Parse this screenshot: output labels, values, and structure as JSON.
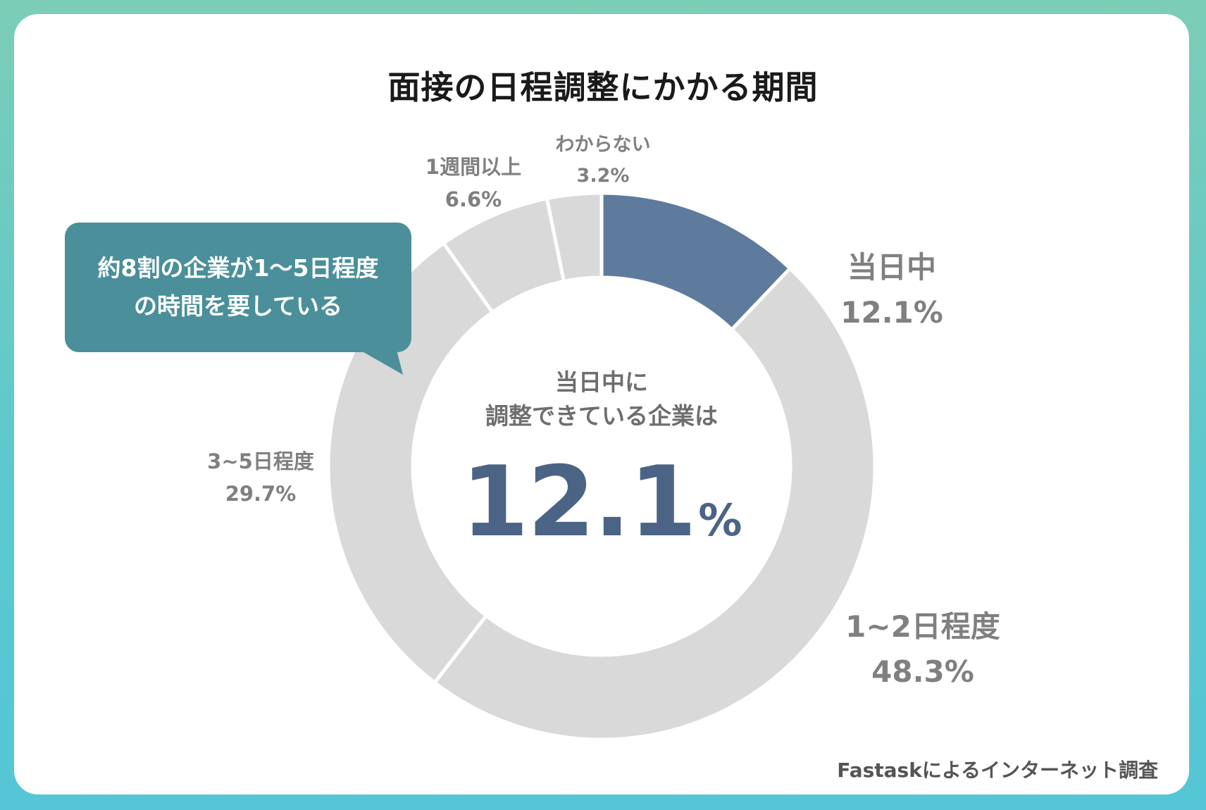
{
  "colors": {
    "highlight": "#5e7b9e",
    "other": "#d9d9d9",
    "callout": "#4a8f99",
    "center_value": "#4b6486",
    "border": "#66c9c7"
  },
  "chart_data": {
    "type": "pie",
    "donut": true,
    "title": "面接の日程調整にかかる期間",
    "categories": [
      "当日中",
      "1~2日程度",
      "3~5日程度",
      "1週間以上",
      "わからない"
    ],
    "values": [
      12.1,
      48.3,
      29.7,
      6.6,
      3.2
    ],
    "value_labels": [
      "12.1%",
      "48.3%",
      "29.7%",
      "6.6%",
      "3.2%"
    ],
    "highlighted": "当日中",
    "center_text": [
      "当日中に",
      "調整できている企業は"
    ],
    "center_value": "12.1",
    "center_unit": "%",
    "callout": [
      "約8割の企業が1〜5日程度",
      "の時間を要している"
    ],
    "source": "Fastaskによるインターネット調査"
  }
}
